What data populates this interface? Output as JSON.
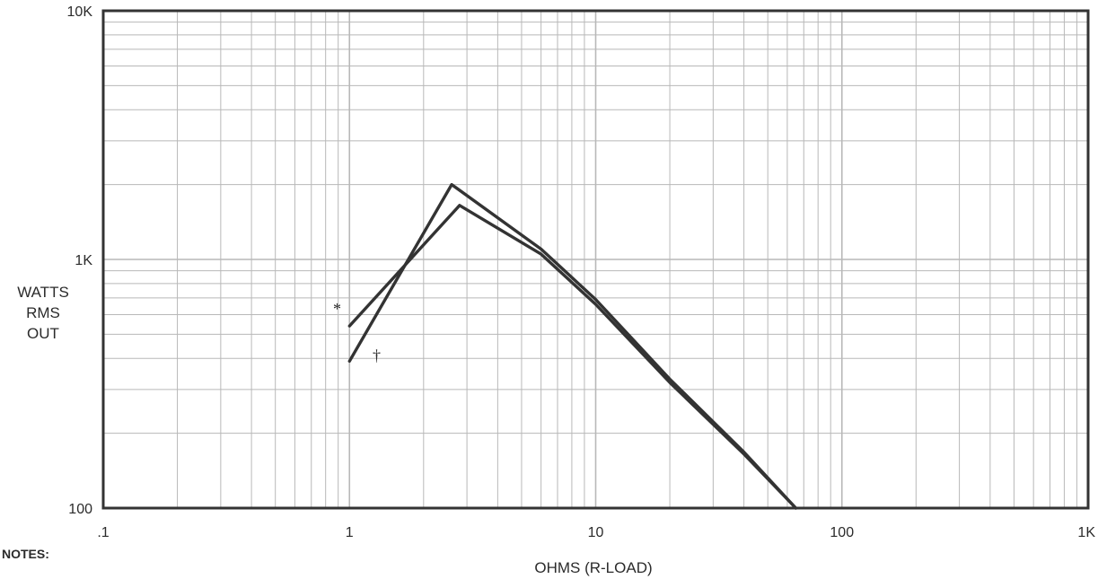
{
  "chart_data": {
    "type": "line",
    "xlabel": "OHMS (R-LOAD)",
    "ylabel_lines": [
      "WATTS",
      "RMS",
      "OUT"
    ],
    "xscale": "log",
    "yscale": "log",
    "xlim": [
      0.1,
      1000
    ],
    "ylim": [
      100,
      10000
    ],
    "x_ticks": [
      0.1,
      1,
      10,
      100,
      1000
    ],
    "x_tick_labels": [
      ".1",
      "1",
      "10",
      "100",
      "1K"
    ],
    "y_ticks": [
      100,
      1000,
      10000
    ],
    "y_tick_labels": [
      "100",
      "1K",
      "10K"
    ],
    "grid": true,
    "series": [
      {
        "marker": "*",
        "x": [
          1.0,
          2.8,
          6,
          10,
          20,
          40,
          65
        ],
        "y": [
          540,
          1650,
          1050,
          660,
          320,
          165,
          100
        ]
      },
      {
        "marker": "†",
        "x": [
          1.0,
          2.6,
          6,
          10,
          20,
          40,
          65
        ],
        "y": [
          390,
          2000,
          1100,
          690,
          330,
          168,
          100
        ]
      }
    ],
    "notes_title": "NOTES:"
  },
  "colors": {
    "line": "#333333",
    "grid": "#b8b8b8",
    "frame": "#333333"
  }
}
